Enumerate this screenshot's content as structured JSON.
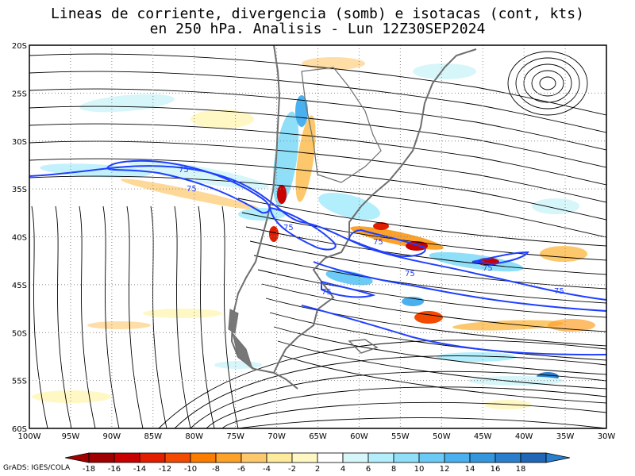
{
  "title": {
    "line1": "Lineas de corriente, divergencia (somb) e isotacas (cont, kts)",
    "line2": "en 250 hPa. Analisis - Lun 12Z30SEP2024"
  },
  "lat_labels": [
    "20S",
    "25S",
    "30S",
    "35S",
    "40S",
    "45S",
    "50S",
    "55S",
    "60S"
  ],
  "lon_labels": [
    "100W",
    "95W",
    "90W",
    "85W",
    "80W",
    "75W",
    "70W",
    "65W",
    "60W",
    "55W",
    "50W",
    "45W",
    "40W",
    "35W",
    "30W"
  ],
  "isotach_label": "75",
  "colorbar": {
    "values": [
      "-18",
      "-16",
      "-14",
      "-12",
      "-10",
      "-8",
      "-6",
      "-4",
      "-2",
      "2",
      "4",
      "6",
      "8",
      "10",
      "12",
      "14",
      "16",
      "18"
    ],
    "colors": [
      "#a00000",
      "#c80000",
      "#e11e00",
      "#f24a00",
      "#fa7d00",
      "#fca12a",
      "#fdc86b",
      "#feea9b",
      "#fff8c4",
      "#ffffff",
      "#d6f6fa",
      "#b3eefc",
      "#8fdff8",
      "#6ccaf6",
      "#4ab1ee",
      "#3497dd",
      "#2a7fcc",
      "#2067b6"
    ]
  },
  "credit": "GrADS: IGES/COLA"
}
